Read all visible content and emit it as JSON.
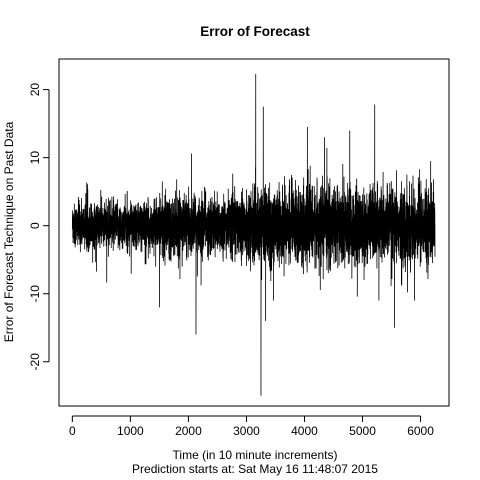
{
  "chart_data": {
    "type": "line",
    "title": "Error of Forecast",
    "xlabel": "Time (in 10 minute increments)",
    "subtitle": "Prediction starts at: Sat May 16 11:48:07 2015",
    "ylabel": "Error of Forecast Technique on Past Data",
    "xlim": [
      -230,
      6490
    ],
    "ylim": [
      -26.5,
      24.5
    ],
    "x_ticks": [
      0,
      1000,
      2000,
      3000,
      4000,
      5000,
      6000
    ],
    "x_tick_labels": [
      "0",
      "1000",
      "2000",
      "3000",
      "4000",
      "5000",
      "6000"
    ],
    "y_ticks": [
      -20,
      -10,
      0,
      10,
      20
    ],
    "y_tick_labels": [
      "-20",
      "-10",
      "0",
      "10",
      "20"
    ],
    "n_points": 6250,
    "line_color": "#000000",
    "notable_values": [
      {
        "x": 2130,
        "y": -16
      },
      {
        "x": 3160,
        "y": 22.3
      },
      {
        "x": 3250,
        "y": -25
      },
      {
        "x": 3290,
        "y": 17.5
      },
      {
        "x": 3330,
        "y": -14
      },
      {
        "x": 1500,
        "y": -12
      },
      {
        "x": 5210,
        "y": 17.8
      },
      {
        "x": 5550,
        "y": -15
      },
      {
        "x": 4050,
        "y": 14.5
      },
      {
        "x": 4780,
        "y": 14
      }
    ]
  }
}
